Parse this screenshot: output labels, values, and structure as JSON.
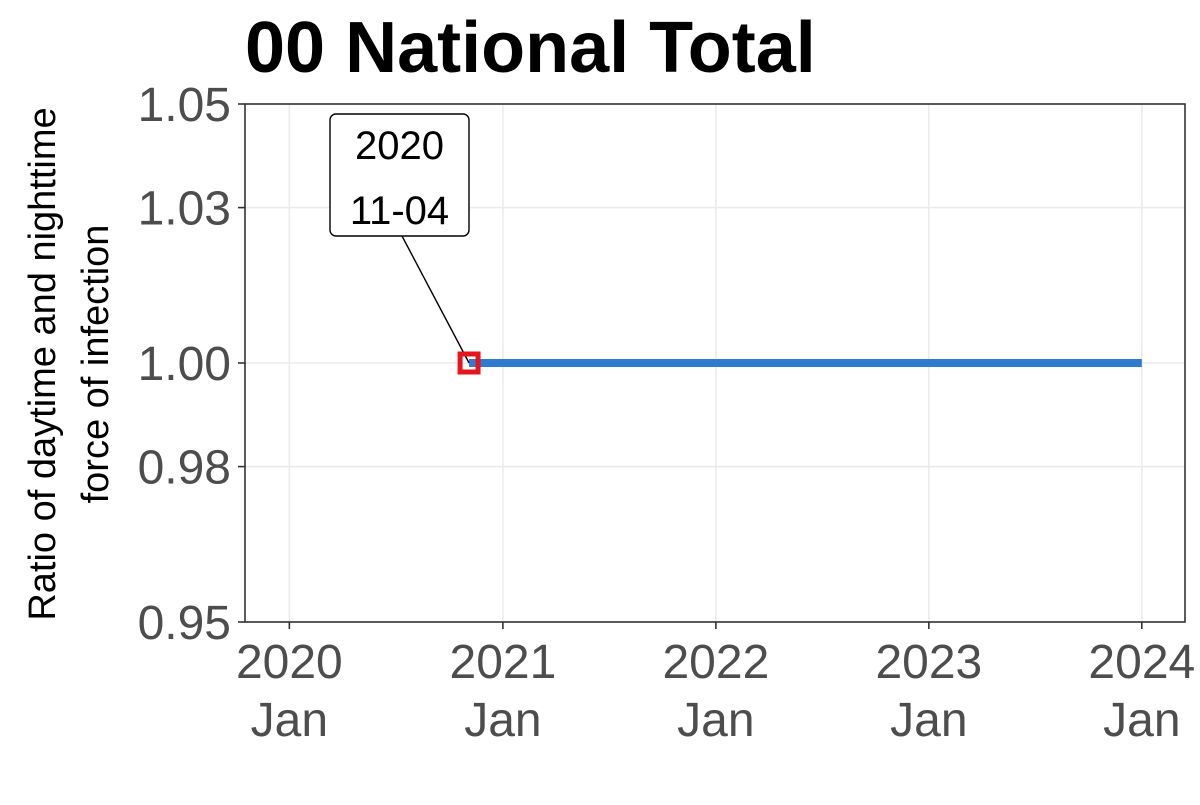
{
  "chart_data": {
    "type": "line",
    "title": "00 National Total",
    "ylabel_lines": [
      "Ratio of daytime and nighttime",
      "force of infection"
    ],
    "xlabel": "",
    "x_axis_type": "date",
    "x_ticks": [
      {
        "date": "2020-01-01",
        "label_lines": [
          "2020",
          "Jan"
        ]
      },
      {
        "date": "2021-01-01",
        "label_lines": [
          "2021",
          "Jan"
        ]
      },
      {
        "date": "2022-01-01",
        "label_lines": [
          "2022",
          "Jan"
        ]
      },
      {
        "date": "2023-01-01",
        "label_lines": [
          "2023",
          "Jan"
        ]
      },
      {
        "date": "2024-01-01",
        "label_lines": [
          "2024",
          "Jan"
        ]
      }
    ],
    "xlim": [
      "2019-10-17",
      "2024-03-15"
    ],
    "y_ticks": [
      0.95,
      0.98,
      1.0,
      1.03,
      1.05
    ],
    "y_tick_labels": [
      "0.95",
      "0.98",
      "1.00",
      "1.03",
      "1.05"
    ],
    "ylim": [
      0.95,
      1.05
    ],
    "grid": true,
    "series": [
      {
        "color": "#2e7bd1",
        "points": [
          {
            "x": "2020-11-04",
            "y": 1.0
          },
          {
            "x": "2024-01-01",
            "y": 1.0
          }
        ]
      }
    ],
    "annotations": [
      {
        "x": "2020-11-04",
        "y": 1.0,
        "label_lines": [
          "2020",
          "11-04"
        ],
        "marker_color": "#e8141c"
      }
    ]
  }
}
